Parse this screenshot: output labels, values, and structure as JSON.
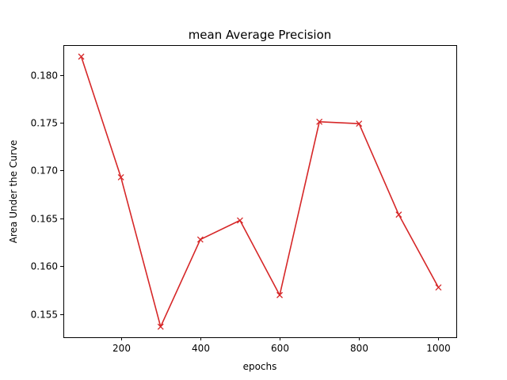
{
  "chart_data": {
    "type": "line",
    "title": "mean Average Precision",
    "xlabel": "epochs",
    "ylabel": "Area Under the Curve",
    "xlim": [
      55,
      1045
    ],
    "ylim": [
      0.1526,
      0.1831
    ],
    "x_ticks": [
      200,
      400,
      600,
      800,
      1000
    ],
    "x_tick_labels": [
      "200",
      "400",
      "600",
      "800",
      "1000"
    ],
    "y_ticks": [
      0.155,
      0.16,
      0.165,
      0.17,
      0.175,
      0.18
    ],
    "y_tick_labels": [
      "0.155",
      "0.160",
      "0.165",
      "0.170",
      "0.175",
      "0.180"
    ],
    "grid": false,
    "legend": false,
    "series": [
      {
        "color": "#d62728",
        "marker": "x",
        "x": [
          100,
          200,
          300,
          400,
          500,
          600,
          700,
          800,
          900,
          1000
        ],
        "values": [
          0.1819,
          0.1693,
          0.1537,
          0.1628,
          0.1648,
          0.157,
          0.1751,
          0.1749,
          0.1654,
          0.1578
        ]
      }
    ]
  }
}
